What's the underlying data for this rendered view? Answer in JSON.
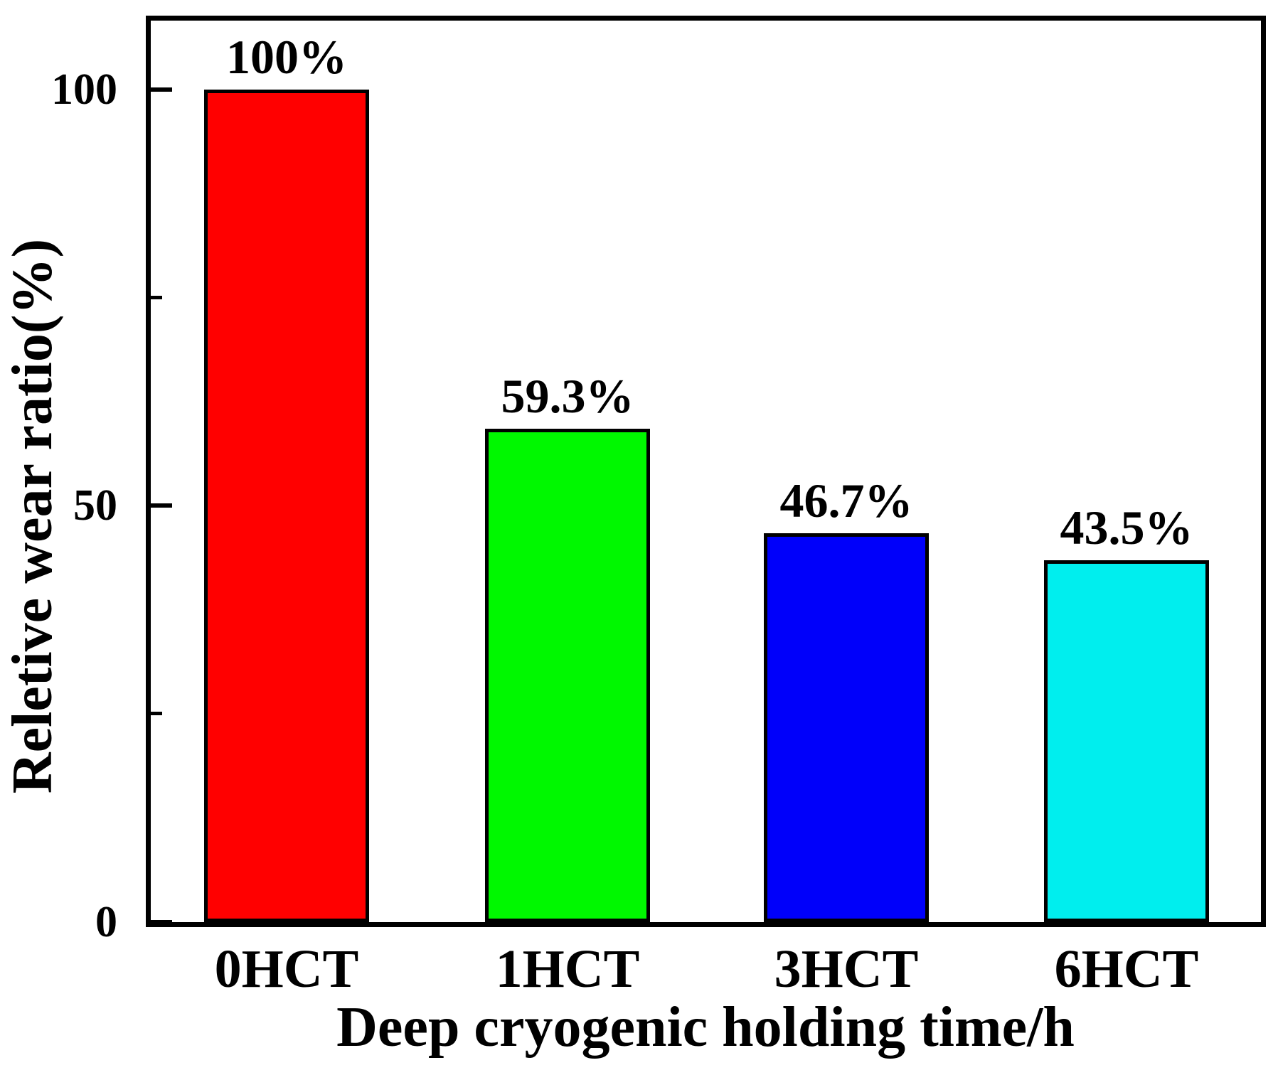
{
  "figure": {
    "background": "#ffffff",
    "frame_color": "#000000",
    "text_color": "#000000"
  },
  "chart_data": {
    "type": "bar",
    "title": "",
    "xlabel": "Deep cryogenic holding time/h",
    "ylabel": "Reletive wear ratio(%)",
    "categories": [
      "0HCT",
      "1HCT",
      "3HCT",
      "6HCT"
    ],
    "values": [
      100,
      59.3,
      46.7,
      43.5
    ],
    "bar_labels": [
      "100%",
      "59.3%",
      "46.7%",
      "43.5%"
    ],
    "bar_colors": [
      "#ff0000",
      "#00f800",
      "#0000fa",
      "#00eeee"
    ],
    "bar_border_color": "#000000",
    "yticks": [
      {
        "value": 0,
        "label": "0"
      },
      {
        "value": 50,
        "label": "50"
      },
      {
        "value": 100,
        "label": "100"
      }
    ],
    "minor_yticks": [
      25,
      75
    ],
    "ylim": [
      0,
      109.5
    ],
    "grid": false,
    "legend": null
  }
}
